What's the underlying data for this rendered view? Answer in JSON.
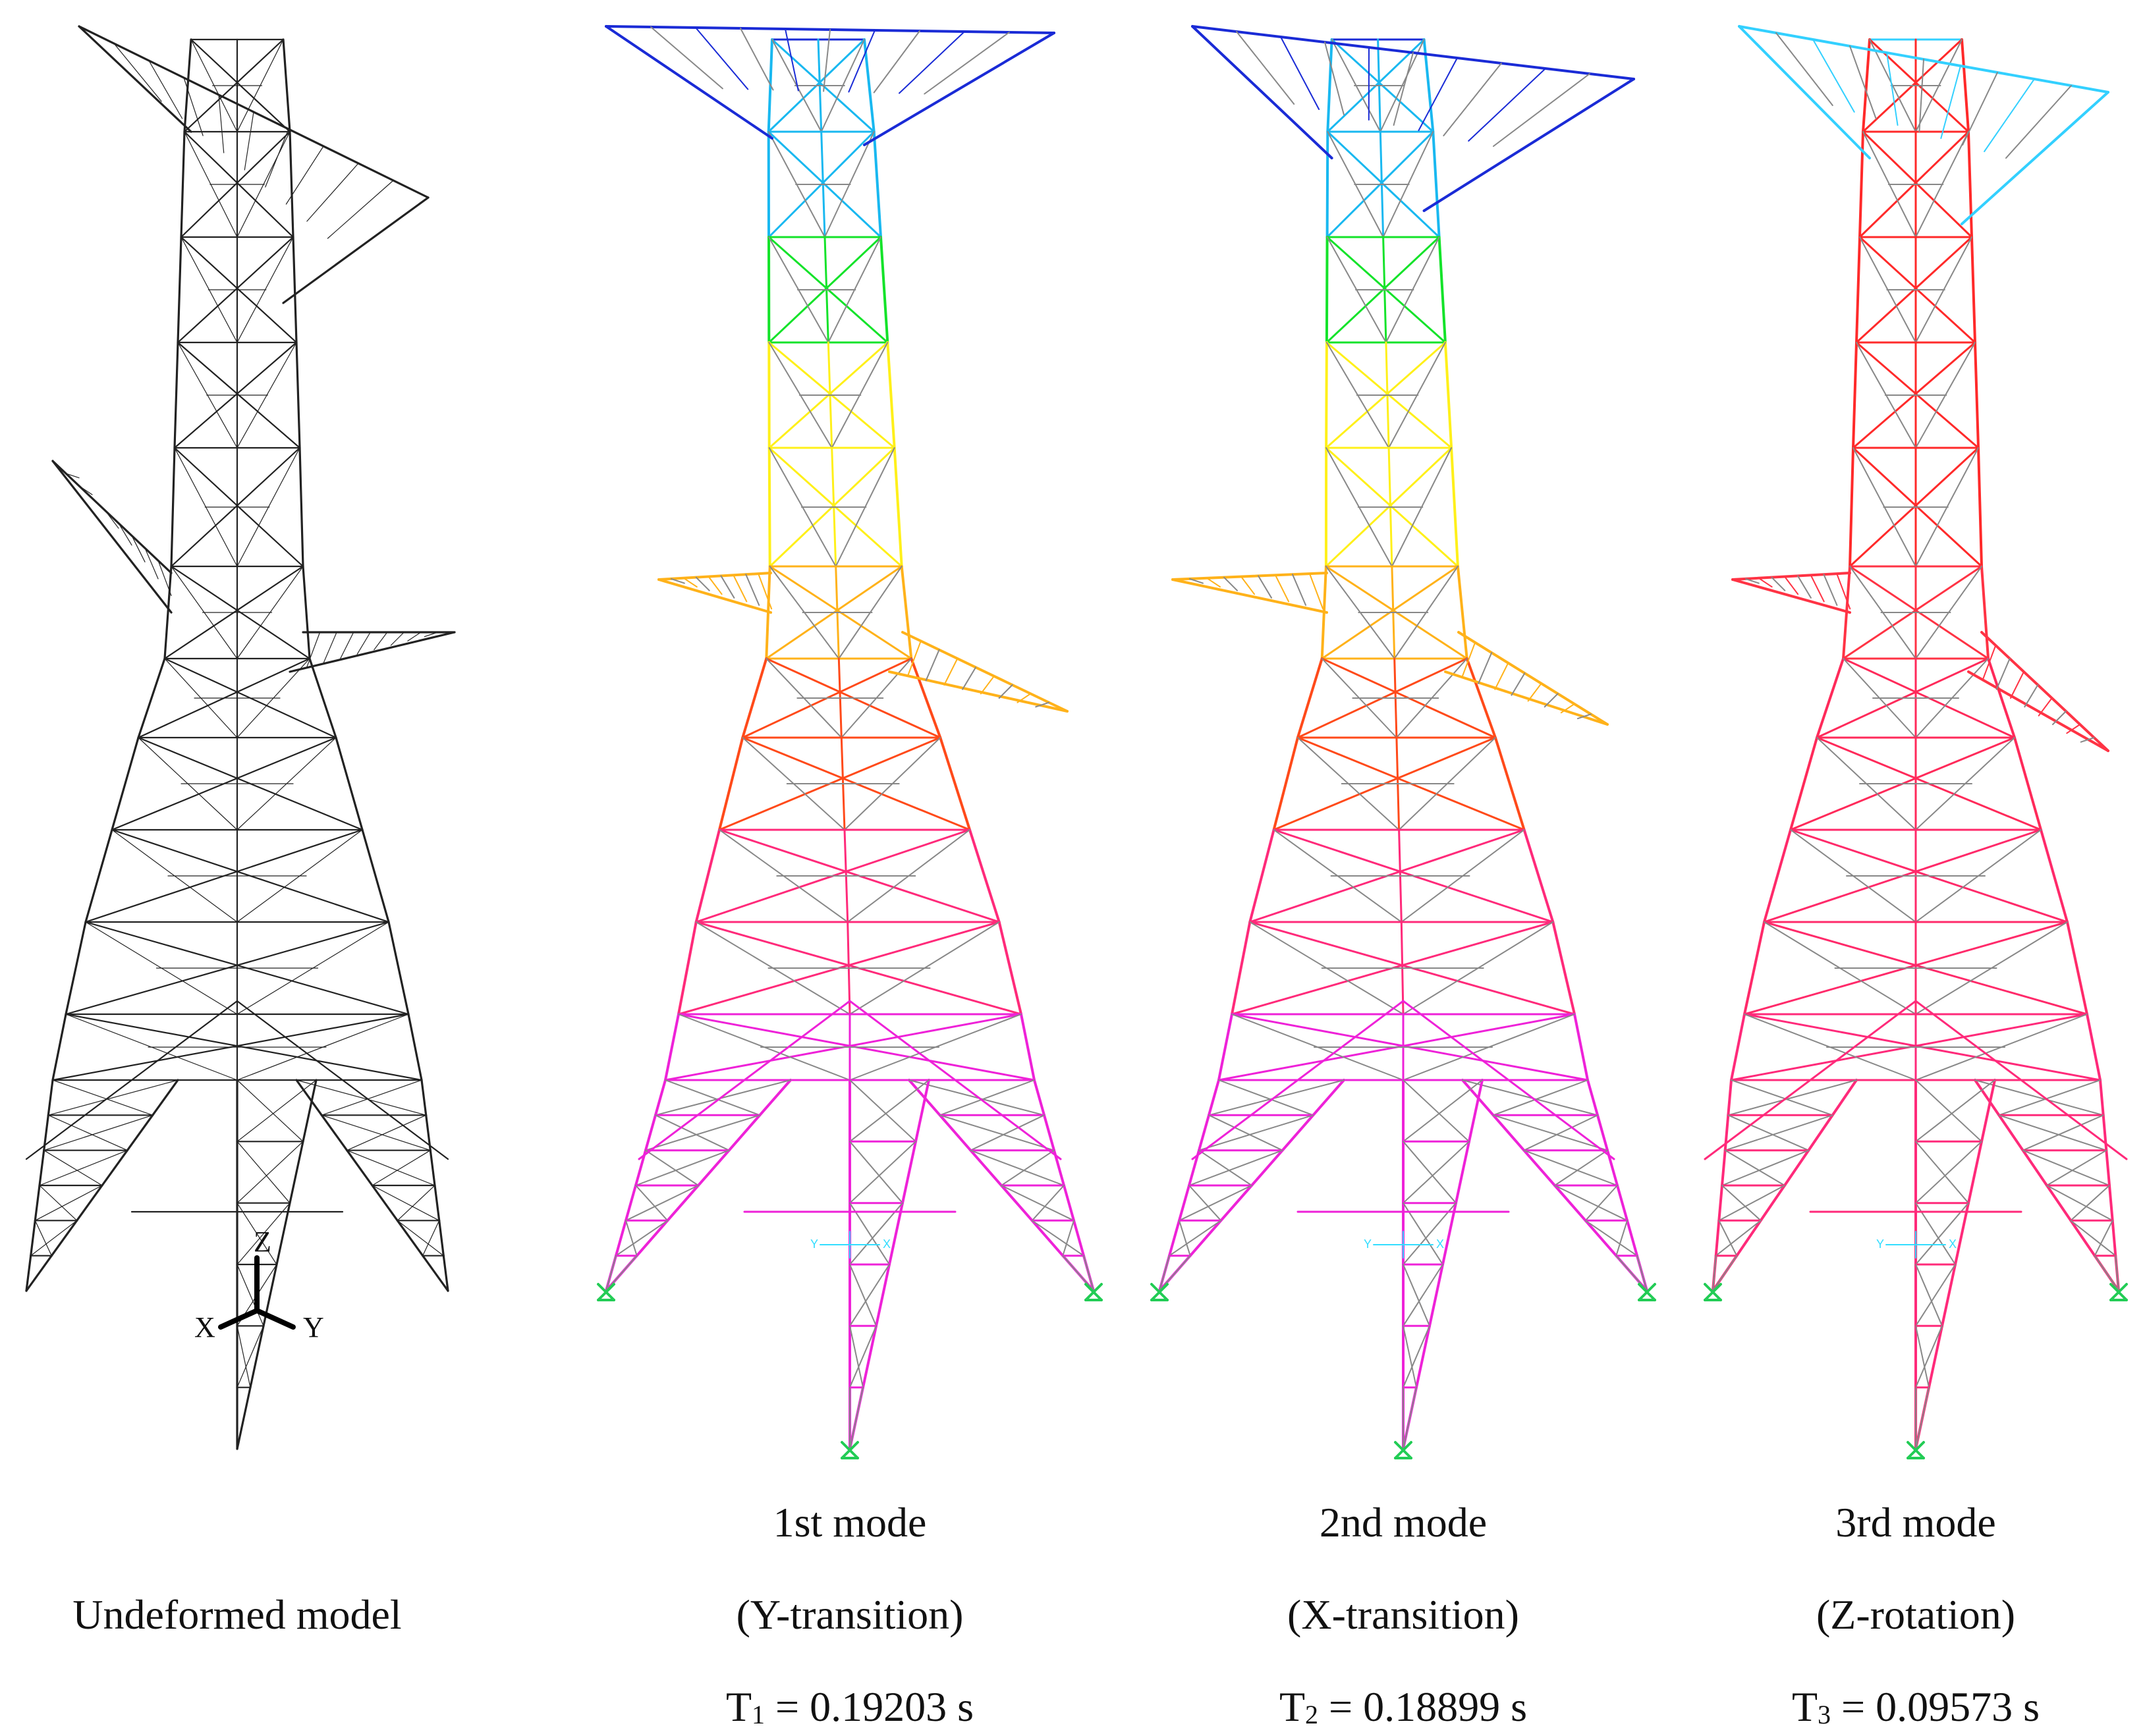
{
  "figure": {
    "panels": [
      {
        "id": "undeformed",
        "caption_lines": [
          "Undeformed model"
        ],
        "axes": {
          "z": "Z",
          "x": "X",
          "y": "Y"
        },
        "line_color": "#222222"
      },
      {
        "id": "mode1",
        "caption_lines": [
          "1st mode",
          "(Y-transition)"
        ],
        "period": {
          "symbol": "T",
          "index": "1",
          "value": " = 0.19203 s"
        },
        "colors": [
          "#1a2bd6",
          "#19b8f0",
          "#14e32a",
          "#fff01a",
          "#ffb21a",
          "#ff4a1a",
          "#ff2a7a",
          "#ee22d8"
        ],
        "offset_top": -0.04
      },
      {
        "id": "mode2",
        "caption_lines": [
          "2nd mode",
          "(X-transition)"
        ],
        "period": {
          "symbol": "T",
          "index": "2",
          "value": " = 0.18899 s"
        },
        "colors": [
          "#1a2bd6",
          "#19b8f0",
          "#14e32a",
          "#fff01a",
          "#ffb21a",
          "#ff4a1a",
          "#ff2a7a",
          "#ee22d8"
        ],
        "offset_top": 0.05
      },
      {
        "id": "mode3",
        "caption_lines": [
          "3rd mode",
          "(Z-rotation)"
        ],
        "period": {
          "symbol": "T",
          "index": "3",
          "value": " = 0.09573 s"
        },
        "colors": [
          "#33d0ff",
          "#ff2a2a",
          "#ff2a2a",
          "#ff2a2a",
          "#ff3344",
          "#ff2a5a",
          "#ff2a6a",
          "#ff2a7a"
        ],
        "offset_top": 0.0
      }
    ],
    "base_axis_labels": {
      "y": "Y",
      "x": "X"
    },
    "brace_color": "#888888",
    "support_color": "#22cc55"
  }
}
